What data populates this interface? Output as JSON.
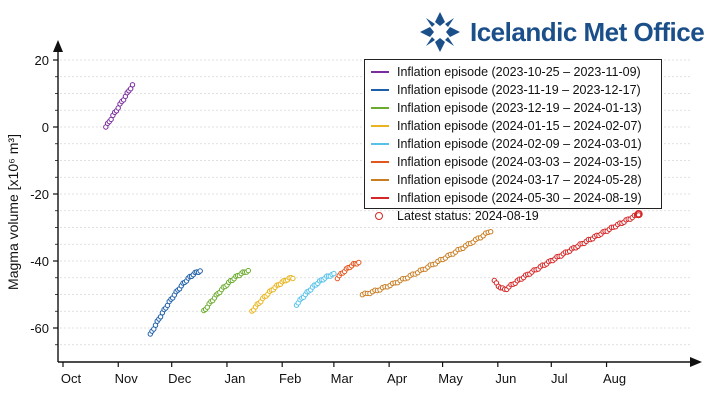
{
  "logo": {
    "text": "Icelandic Met Office",
    "color": "#1b4f8a"
  },
  "chart_data": {
    "type": "scatter",
    "title": "",
    "ylabel": "Magma volume [x10⁶ m³]",
    "xlabel": "",
    "ylim": [
      -70,
      25
    ],
    "yticks": [
      20,
      0,
      -20,
      -40,
      -60
    ],
    "xlim": [
      "2023-10-01",
      "2024-08-31"
    ],
    "xticks": [
      {
        "label": "Oct",
        "date": "2023-10-01"
      },
      {
        "label": "Nov",
        "date": "2023-11-01"
      },
      {
        "label": "Dec",
        "date": "2023-12-01"
      },
      {
        "label": "Jan",
        "date": "2024-01-01"
      },
      {
        "label": "Feb",
        "date": "2024-02-01"
      },
      {
        "label": "Mar",
        "date": "2024-03-01"
      },
      {
        "label": "Apr",
        "date": "2024-04-01"
      },
      {
        "label": "May",
        "date": "2024-05-01"
      },
      {
        "label": "Jun",
        "date": "2024-06-01"
      },
      {
        "label": "Jul",
        "date": "2024-07-01"
      },
      {
        "label": "Aug",
        "date": "2024-08-01"
      }
    ],
    "grid": true,
    "legend_position": "top-right",
    "series": [
      {
        "name": "Inflation episode (2023-10-25 – 2023-11-09)",
        "color": "#7b2d9e",
        "start": "2023-10-25",
        "end": "2023-11-09",
        "y_start": 0,
        "y_end": 12.5,
        "n": 16,
        "shape": "linear"
      },
      {
        "name": "Inflation episode (2023-11-19 – 2023-12-17)",
        "color": "#1f5fa8",
        "start": "2023-11-19",
        "end": "2023-12-17",
        "y_start": -62,
        "y_end": -43,
        "n": 30,
        "shape": "concave"
      },
      {
        "name": "Inflation episode (2023-12-19 – 2024-01-13)",
        "color": "#6bab2e",
        "start": "2023-12-19",
        "end": "2024-01-13",
        "y_start": -55,
        "y_end": -43,
        "n": 26,
        "shape": "concave"
      },
      {
        "name": "Inflation episode (2024-01-15 – 2024-02-07)",
        "color": "#e8b520",
        "start": "2024-01-15",
        "end": "2024-02-07",
        "y_start": -55,
        "y_end": -45,
        "n": 24,
        "shape": "concave"
      },
      {
        "name": "Inflation episode (2024-02-09 – 2024-03-01)",
        "color": "#56c2ea",
        "start": "2024-02-09",
        "end": "2024-03-01",
        "y_start": -53,
        "y_end": -44,
        "n": 22,
        "shape": "concave"
      },
      {
        "name": "Inflation episode (2024-03-03 – 2024-03-15)",
        "color": "#e3571f",
        "start": "2024-03-03",
        "end": "2024-03-15",
        "y_start": -45,
        "y_end": -40.5,
        "n": 13,
        "shape": "concave"
      },
      {
        "name": "Inflation episode (2024-03-17 – 2024-05-28)",
        "color": "#c97d22",
        "start": "2024-03-17",
        "end": "2024-05-28",
        "y_start": -50,
        "y_end": -31,
        "n": 52,
        "shape": "convex"
      },
      {
        "name": "Inflation episode (2024-05-30 – 2024-08-19)",
        "color": "#d62728",
        "start": "2024-05-30",
        "end": "2024-08-19",
        "y_start": -46,
        "y_end": -26,
        "n": 70,
        "shape": "dip",
        "y_min": -48.5
      }
    ],
    "latest_status": {
      "label": "Latest status: 2024-08-19",
      "date": "2024-08-19",
      "y": -26,
      "color": "#d62728"
    }
  }
}
